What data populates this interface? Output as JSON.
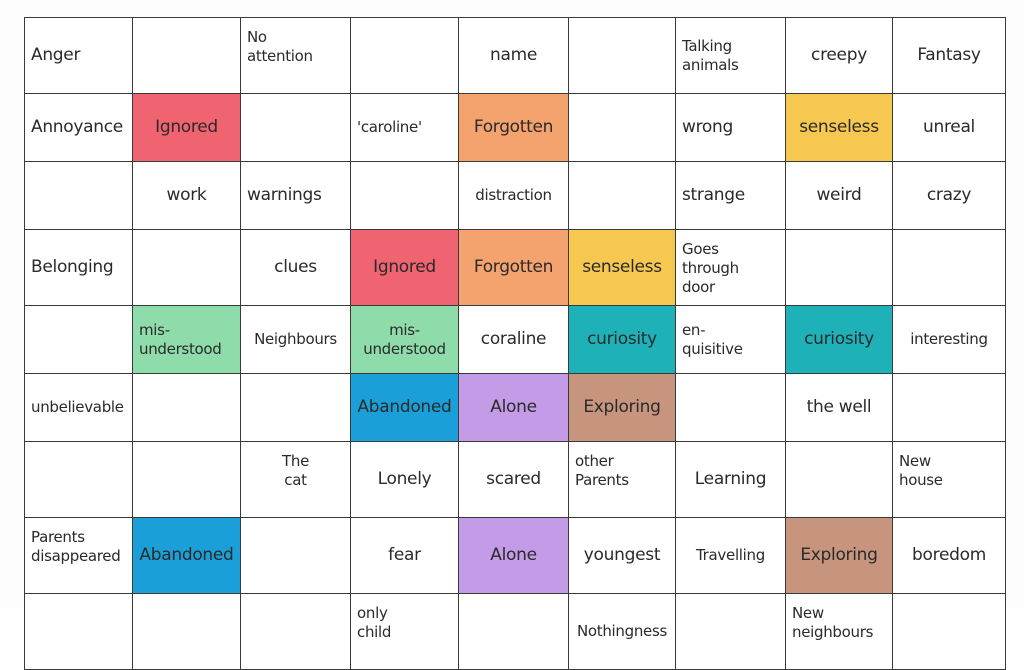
{
  "colors": {
    "red": "#ef6470",
    "orange": "#f4a26e",
    "yellow": "#f7c84f",
    "green": "#8fdcab",
    "teal": "#1fb1b8",
    "blue": "#1a9fd8",
    "purple": "#c49be6",
    "brown": "#c7957e",
    "white": "#ffffff"
  },
  "rows": [
    [
      {
        "text": "Anger",
        "color": "white"
      },
      {
        "text": "",
        "color": "white"
      },
      {
        "text": "No\nattention",
        "color": "white"
      },
      {
        "text": "",
        "color": "white"
      },
      {
        "text": "name",
        "color": "white"
      },
      {
        "text": "",
        "color": "white"
      },
      {
        "text": "Talking\nanimals",
        "color": "white"
      },
      {
        "text": "creepy",
        "color": "white"
      },
      {
        "text": "Fantasy",
        "color": "white"
      }
    ],
    [
      {
        "text": "Annoyance",
        "color": "white"
      },
      {
        "text": "Ignored",
        "color": "red"
      },
      {
        "text": "",
        "color": "white"
      },
      {
        "text": "'caroline'",
        "color": "white"
      },
      {
        "text": "Forgotten",
        "color": "orange"
      },
      {
        "text": "",
        "color": "white"
      },
      {
        "text": "wrong",
        "color": "white"
      },
      {
        "text": "senseless",
        "color": "yellow"
      },
      {
        "text": "unreal",
        "color": "white"
      }
    ],
    [
      {
        "text": "",
        "color": "white"
      },
      {
        "text": "work",
        "color": "white"
      },
      {
        "text": "warnings",
        "color": "white"
      },
      {
        "text": "",
        "color": "white"
      },
      {
        "text": "distraction",
        "color": "white"
      },
      {
        "text": "",
        "color": "white"
      },
      {
        "text": "strange",
        "color": "white"
      },
      {
        "text": "weird",
        "color": "white"
      },
      {
        "text": "crazy",
        "color": "white"
      }
    ],
    [
      {
        "text": "Belonging",
        "color": "white"
      },
      {
        "text": "",
        "color": "white"
      },
      {
        "text": "clues",
        "color": "white"
      },
      {
        "text": "Ignored",
        "color": "red"
      },
      {
        "text": "Forgotten",
        "color": "orange"
      },
      {
        "text": "senseless",
        "color": "yellow"
      },
      {
        "text": "Goes\nthrough\ndoor",
        "color": "white"
      },
      {
        "text": "",
        "color": "white"
      },
      {
        "text": "",
        "color": "white"
      }
    ],
    [
      {
        "text": "",
        "color": "white"
      },
      {
        "text": "mis-\nunderstood",
        "color": "green"
      },
      {
        "text": "Neighbours",
        "color": "white"
      },
      {
        "text": "mis-\nunderstood",
        "color": "green"
      },
      {
        "text": "coraline",
        "color": "white"
      },
      {
        "text": "curiosity",
        "color": "teal"
      },
      {
        "text": "en-\nquisitive",
        "color": "white"
      },
      {
        "text": "curiosity",
        "color": "teal"
      },
      {
        "text": "interesting",
        "color": "white"
      }
    ],
    [
      {
        "text": "unbelievable",
        "color": "white"
      },
      {
        "text": "",
        "color": "white"
      },
      {
        "text": "",
        "color": "white"
      },
      {
        "text": "Abandoned",
        "color": "blue"
      },
      {
        "text": "Alone",
        "color": "purple"
      },
      {
        "text": "Exploring",
        "color": "brown"
      },
      {
        "text": "",
        "color": "white"
      },
      {
        "text": "the well",
        "color": "white"
      },
      {
        "text": "",
        "color": "white"
      }
    ],
    [
      {
        "text": "",
        "color": "white"
      },
      {
        "text": "",
        "color": "white"
      },
      {
        "text": "The\ncat",
        "color": "white"
      },
      {
        "text": "Lonely",
        "color": "white"
      },
      {
        "text": "scared",
        "color": "white"
      },
      {
        "text": "other\nParents",
        "color": "white"
      },
      {
        "text": "Learning",
        "color": "white"
      },
      {
        "text": "",
        "color": "white"
      },
      {
        "text": "New\nhouse",
        "color": "white"
      }
    ],
    [
      {
        "text": "Parents\ndisappeared",
        "color": "white"
      },
      {
        "text": "Abandoned",
        "color": "blue"
      },
      {
        "text": "",
        "color": "white"
      },
      {
        "text": "fear",
        "color": "white"
      },
      {
        "text": "Alone",
        "color": "purple"
      },
      {
        "text": "youngest",
        "color": "white"
      },
      {
        "text": "Travelling",
        "color": "white"
      },
      {
        "text": "Exploring",
        "color": "brown"
      },
      {
        "text": "boredom",
        "color": "white"
      }
    ],
    [
      {
        "text": "",
        "color": "white"
      },
      {
        "text": "",
        "color": "white"
      },
      {
        "text": "",
        "color": "white"
      },
      {
        "text": "only\nchild",
        "color": "white"
      },
      {
        "text": "",
        "color": "white"
      },
      {
        "text": "Nothingness",
        "color": "white"
      },
      {
        "text": "",
        "color": "white"
      },
      {
        "text": "New\nneighbours",
        "color": "white"
      },
      {
        "text": "",
        "color": "white"
      }
    ]
  ]
}
